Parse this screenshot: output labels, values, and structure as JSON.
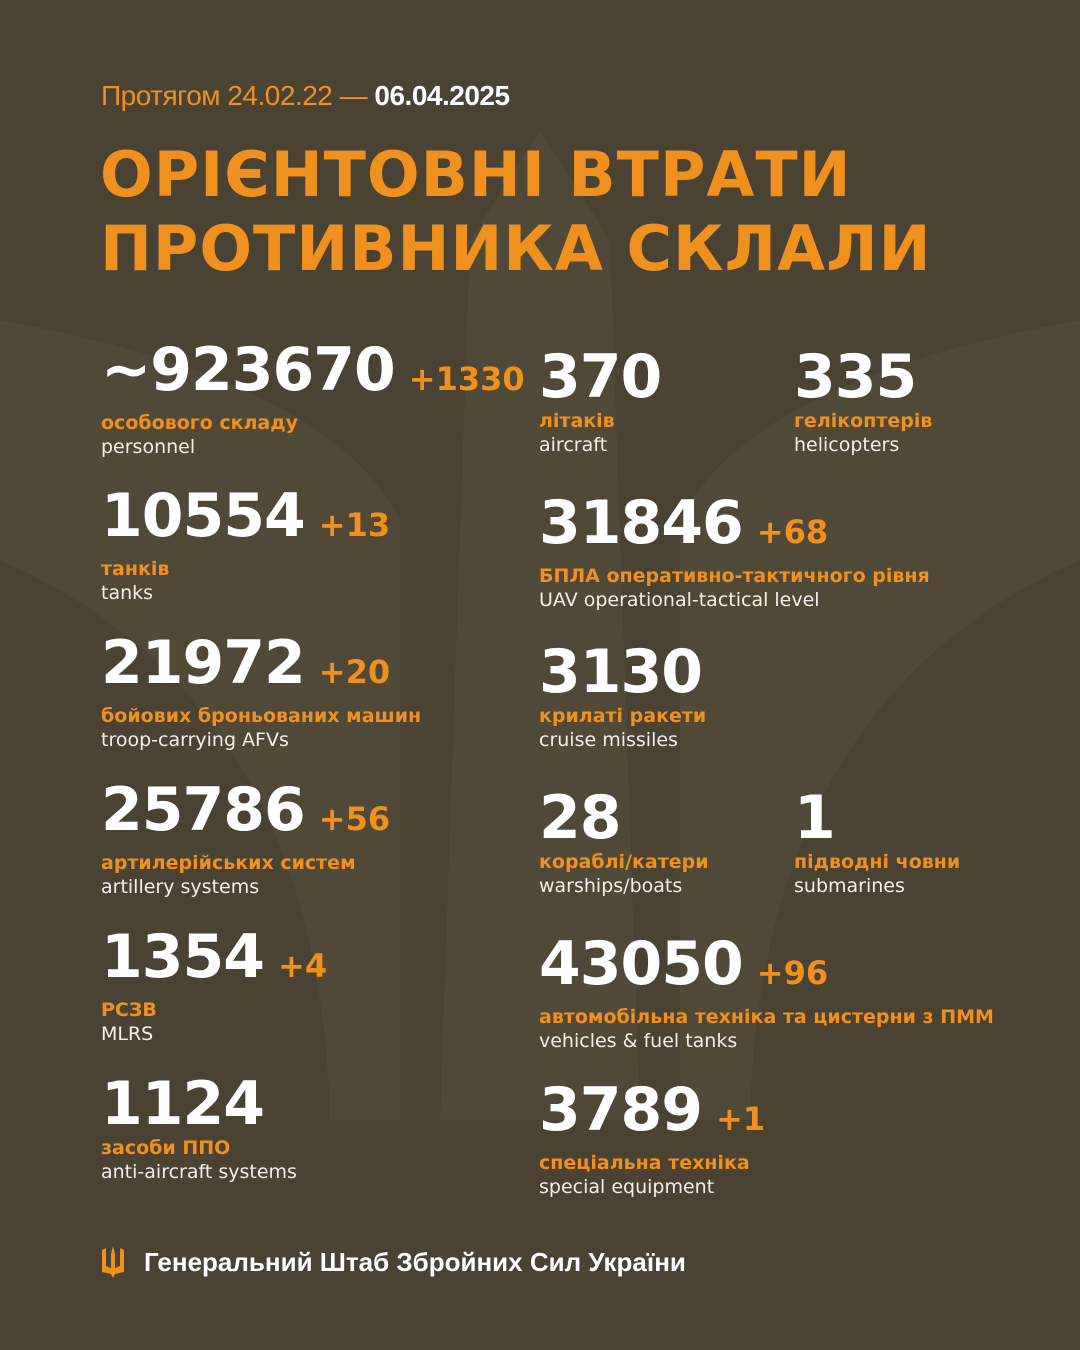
{
  "header": {
    "period_prefix": "Протягом 24.02.22 —",
    "period_end": "06.04.2025",
    "title_line1": "ОРІЄНТОВНІ ВТРАТИ",
    "title_line2": "ПРОТИВНИКА СКЛАЛИ"
  },
  "colors": {
    "background": "#4a4232",
    "accent": "#f0901e",
    "text": "#ffffff"
  },
  "stats": {
    "personnel": {
      "value": "~923670",
      "delta": "+1330",
      "ua": "особового складу",
      "en": "personnel"
    },
    "tanks": {
      "value": "10554",
      "delta": "+13",
      "ua": "танків",
      "en": "tanks"
    },
    "afv": {
      "value": "21972",
      "delta": "+20",
      "ua": "бойових броньованих машин",
      "en": "troop-carrying AFVs"
    },
    "artillery": {
      "value": "25786",
      "delta": "+56",
      "ua": "артилерійських систем",
      "en": "artillery systems"
    },
    "mlrs": {
      "value": "1354",
      "delta": "+4",
      "ua": "РСЗВ",
      "en": "MLRS"
    },
    "air_defense": {
      "value": "1124",
      "ua": "засоби ППО",
      "en": "anti-aircraft systems"
    },
    "aircraft": {
      "value": "370",
      "ua": "літаків",
      "en": "aircraft"
    },
    "helicopters": {
      "value": "335",
      "ua": "гелікоптерів",
      "en": "helicopters"
    },
    "uav": {
      "value": "31846",
      "delta": "+68",
      "ua": "БПЛА оперативно-тактичного рівня",
      "en": "UAV operational-tactical level"
    },
    "cruise_missiles": {
      "value": "3130",
      "ua": "крилаті ракети",
      "en": "cruise missiles"
    },
    "warships": {
      "value": "28",
      "ua": "кораблі/катери",
      "en": "warships/boats"
    },
    "submarines": {
      "value": "1",
      "ua": "підводні човни",
      "en": "submarines"
    },
    "vehicles": {
      "value": "43050",
      "delta": "+96",
      "ua": "автомобільна техніка та цистерни з ПММ",
      "en": "vehicles & fuel tanks"
    },
    "special": {
      "value": "3789",
      "delta": "+1",
      "ua": "спеціальна техніка",
      "en": "special equipment"
    }
  },
  "footer": {
    "org": "Генеральний Штаб Збройних Сил України",
    "logo_icon": "trident-icon"
  }
}
